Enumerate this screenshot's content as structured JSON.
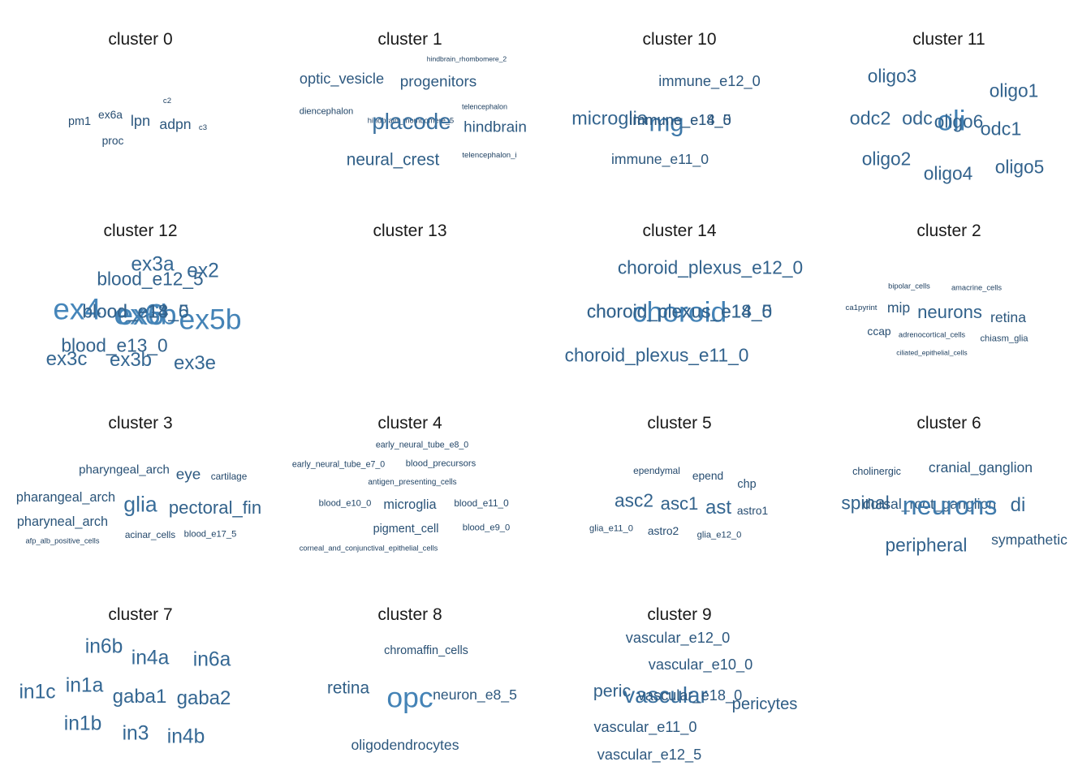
{
  "chart_data": {
    "type": "wordcloud",
    "layout": "facet grid, 4 columns",
    "color_scale": {
      "low": "#1f3f5f",
      "high": "#4a8ec4"
    },
    "panels": [
      {
        "title": "cluster 0",
        "words": [
          {
            "text": "pm1",
            "weight": 0.2
          },
          {
            "text": "ex6a",
            "weight": 0.18
          },
          {
            "text": "lpn",
            "weight": 0.32
          },
          {
            "text": "c2",
            "weight": 0.05
          },
          {
            "text": "adpn",
            "weight": 0.3
          },
          {
            "text": "c3",
            "weight": 0.05
          },
          {
            "text": "proc",
            "weight": 0.18
          }
        ]
      },
      {
        "title": "cluster 1",
        "words": [
          {
            "text": "hindbrain_rhombomere_2",
            "weight": 0.02
          },
          {
            "text": "optic_vesicle",
            "weight": 0.32
          },
          {
            "text": "progenitors",
            "weight": 0.34
          },
          {
            "text": "diencephalon",
            "weight": 0.1
          },
          {
            "text": "telencephalon",
            "weight": 0.03
          },
          {
            "text": "hindbrain_rhombomere_5",
            "weight": 0.04
          },
          {
            "text": "placode",
            "weight": 0.62
          },
          {
            "text": "hindbrain",
            "weight": 0.34
          },
          {
            "text": "neural_crest",
            "weight": 0.4
          },
          {
            "text": "telencephalon_i",
            "weight": 0.05
          }
        ]
      },
      {
        "title": "cluster 10",
        "words": [
          {
            "text": "immune_e12_0",
            "weight": 0.32
          },
          {
            "text": "microglia",
            "weight": 0.48
          },
          {
            "text": "mg",
            "weight": 0.72
          },
          {
            "text": "immune_e14_5",
            "weight": 0.32
          },
          {
            "text": "immune_e18_0",
            "weight": 0.32
          },
          {
            "text": "immune_e11_0",
            "weight": 0.3
          }
        ]
      },
      {
        "title": "cluster 11",
        "words": [
          {
            "text": "oligo3",
            "weight": 0.46
          },
          {
            "text": "oligo1",
            "weight": 0.46
          },
          {
            "text": "odc2",
            "weight": 0.48
          },
          {
            "text": "odc",
            "weight": 0.48
          },
          {
            "text": "oli",
            "weight": 0.84
          },
          {
            "text": "oligo6",
            "weight": 0.46
          },
          {
            "text": "odc1",
            "weight": 0.48
          },
          {
            "text": "oligo2",
            "weight": 0.46
          },
          {
            "text": "oligo4",
            "weight": 0.46
          },
          {
            "text": "oligo5",
            "weight": 0.46
          }
        ]
      },
      {
        "title": "cluster 12",
        "words": [
          {
            "text": "ex3a",
            "weight": 0.52
          },
          {
            "text": "ex2",
            "weight": 0.52
          },
          {
            "text": "ex4",
            "weight": 0.9
          },
          {
            "text": "ex6b",
            "weight": 0.86
          },
          {
            "text": "ex6",
            "weight": 0.88
          },
          {
            "text": "ex5b",
            "weight": 0.86
          },
          {
            "text": "ex3c",
            "weight": 0.5
          },
          {
            "text": "ex3b",
            "weight": 0.5
          },
          {
            "text": "ex3e",
            "weight": 0.5
          }
        ]
      },
      {
        "title": "cluster 13",
        "words": [
          {
            "text": "blood_e12_5",
            "weight": 0.46
          },
          {
            "text": "blood_e14_5",
            "weight": 0.46
          },
          {
            "text": "blood_e18_0",
            "weight": 0.46
          },
          {
            "text": "blood_e13_0",
            "weight": 0.46
          }
        ]
      },
      {
        "title": "cluster 14",
        "words": [
          {
            "text": "choroid_plexus_e12_0",
            "weight": 0.46
          },
          {
            "text": "choroid",
            "weight": 0.86
          },
          {
            "text": "choroid_plexus_e14_5",
            "weight": 0.46
          },
          {
            "text": "choroid_plexus_e18_0",
            "weight": 0.46
          },
          {
            "text": "choroid_plexus_e11_0",
            "weight": 0.46
          }
        ]
      },
      {
        "title": "cluster 2",
        "words": [
          {
            "text": "bipolar_cells",
            "weight": 0.04
          },
          {
            "text": "amacrine_cells",
            "weight": 0.04
          },
          {
            "text": "ca1pyrint",
            "weight": 0.05
          },
          {
            "text": "mip",
            "weight": 0.3
          },
          {
            "text": "neurons",
            "weight": 0.44
          },
          {
            "text": "retina",
            "weight": 0.3
          },
          {
            "text": "ccap",
            "weight": 0.18
          },
          {
            "text": "adrenocortical_cells",
            "weight": 0.04
          },
          {
            "text": "chiasm_glia",
            "weight": 0.1
          },
          {
            "text": "ciliated_epithelial_cells",
            "weight": 0.02
          }
        ]
      },
      {
        "title": "cluster 3",
        "words": [
          {
            "text": "pharyngeal_arch",
            "weight": 0.22
          },
          {
            "text": "eye",
            "weight": 0.34
          },
          {
            "text": "cartilage",
            "weight": 0.12
          },
          {
            "text": "pharangeal_arch",
            "weight": 0.26
          },
          {
            "text": "glia",
            "weight": 0.58
          },
          {
            "text": "pectoral_fin",
            "weight": 0.44
          },
          {
            "text": "pharyneal_arch",
            "weight": 0.26
          },
          {
            "text": "acinar_cells",
            "weight": 0.12
          },
          {
            "text": "blood_e17_5",
            "weight": 0.1
          },
          {
            "text": "afp_alb_positive_cells",
            "weight": 0.04
          }
        ]
      },
      {
        "title": "cluster 4",
        "words": [
          {
            "text": "early_neural_tube_e8_0",
            "weight": 0.08
          },
          {
            "text": "early_neural_tube_e7_0",
            "weight": 0.08
          },
          {
            "text": "blood_precursors",
            "weight": 0.1
          },
          {
            "text": "antigen_presenting_cells",
            "weight": 0.06
          },
          {
            "text": "blood_e10_0",
            "weight": 0.1
          },
          {
            "text": "microglia",
            "weight": 0.26
          },
          {
            "text": "blood_e11_0",
            "weight": 0.12
          },
          {
            "text": "pigment_cell",
            "weight": 0.2
          },
          {
            "text": "blood_e9_0",
            "weight": 0.1
          },
          {
            "text": "corneal_and_conjunctival_epithelial_cells",
            "weight": 0.04
          }
        ]
      },
      {
        "title": "cluster 5",
        "words": [
          {
            "text": "ependymal",
            "weight": 0.12
          },
          {
            "text": "epend",
            "weight": 0.18
          },
          {
            "text": "chp",
            "weight": 0.2
          },
          {
            "text": "asc2",
            "weight": 0.46
          },
          {
            "text": "asc1",
            "weight": 0.44
          },
          {
            "text": "ast",
            "weight": 0.5
          },
          {
            "text": "astro1",
            "weight": 0.18
          },
          {
            "text": "glia_e11_0",
            "weight": 0.1
          },
          {
            "text": "astro2",
            "weight": 0.18
          },
          {
            "text": "glia_e12_0",
            "weight": 0.1
          }
        ]
      },
      {
        "title": "cluster 6",
        "words": [
          {
            "text": "cholinergic",
            "weight": 0.14
          },
          {
            "text": "cranial_ganglion",
            "weight": 0.3
          },
          {
            "text": "spinal",
            "weight": 0.46
          },
          {
            "text": "dorsal_root_ganglion",
            "weight": 0.3
          },
          {
            "text": "neurons",
            "weight": 0.76
          },
          {
            "text": "di",
            "weight": 0.5
          },
          {
            "text": "peripheral",
            "weight": 0.46
          },
          {
            "text": "sympathetic",
            "weight": 0.3
          }
        ]
      },
      {
        "title": "cluster 7",
        "words": [
          {
            "text": "in6b",
            "weight": 0.52
          },
          {
            "text": "in4a",
            "weight": 0.52
          },
          {
            "text": "in6a",
            "weight": 0.52
          },
          {
            "text": "in1c",
            "weight": 0.52
          },
          {
            "text": "in1a",
            "weight": 0.52
          },
          {
            "text": "gaba1",
            "weight": 0.5
          },
          {
            "text": "gaba2",
            "weight": 0.5
          },
          {
            "text": "in1b",
            "weight": 0.52
          },
          {
            "text": "in3",
            "weight": 0.52
          },
          {
            "text": "in4b",
            "weight": 0.52
          }
        ]
      },
      {
        "title": "cluster 8",
        "words": [
          {
            "text": "chromaffin_cells",
            "weight": 0.2
          },
          {
            "text": "retina",
            "weight": 0.4
          },
          {
            "text": "opc",
            "weight": 0.86
          },
          {
            "text": "neuron_e8_5",
            "weight": 0.3
          },
          {
            "text": "oligodendrocytes",
            "weight": 0.3
          }
        ]
      },
      {
        "title": "cluster 9",
        "words": [
          {
            "text": "vascular_e12_0",
            "weight": 0.32
          },
          {
            "text": "vascular_e10_0",
            "weight": 0.32
          },
          {
            "text": "peric",
            "weight": 0.42
          },
          {
            "text": "vascular",
            "weight": 0.62
          },
          {
            "text": "vascular_e18_0",
            "weight": 0.32
          },
          {
            "text": "pericytes",
            "weight": 0.38
          },
          {
            "text": "vascular_e11_0",
            "weight": 0.32
          },
          {
            "text": "vascular_e12_5",
            "weight": 0.32
          }
        ]
      }
    ]
  }
}
